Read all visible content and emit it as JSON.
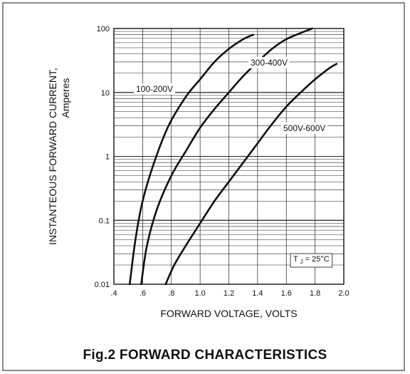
{
  "chart_data": {
    "type": "line",
    "title": "",
    "caption": "Fig.2 FORWARD CHARACTERISTICS",
    "xlabel": "FORWARD VOLTAGE, VOLTS",
    "ylabel_line1": "INSTANTEOUS FORWARD CURRENT,",
    "ylabel_line2": "Amperes",
    "x_scale": "linear",
    "y_scale": "log",
    "xlim": [
      0.4,
      2.0
    ],
    "ylim": [
      0.01,
      100
    ],
    "x_ticks": [
      ".4",
      ".6",
      ".8",
      "1.0",
      "1.2",
      "1.4",
      "1.6",
      "1.8",
      "2.0"
    ],
    "y_ticks": [
      "0.01",
      "0.1",
      "1",
      "10",
      "100"
    ],
    "grid": true,
    "condition_text": "= 25°C",
    "condition_symbol": "T",
    "condition_subscript": "J",
    "series": [
      {
        "name": "100-200V",
        "points": [
          [
            0.51,
            0.01
          ],
          [
            0.55,
            0.05
          ],
          [
            0.6,
            0.2
          ],
          [
            0.68,
            0.8
          ],
          [
            0.78,
            3.0
          ],
          [
            0.9,
            8.5
          ],
          [
            1.0,
            16
          ],
          [
            1.1,
            30
          ],
          [
            1.2,
            48
          ],
          [
            1.3,
            68
          ],
          [
            1.37,
            80
          ]
        ]
      },
      {
        "name": "300-400V",
        "points": [
          [
            0.59,
            0.01
          ],
          [
            0.63,
            0.04
          ],
          [
            0.7,
            0.15
          ],
          [
            0.8,
            0.5
          ],
          [
            0.9,
            1.2
          ],
          [
            1.0,
            2.8
          ],
          [
            1.1,
            5.5
          ],
          [
            1.2,
            10
          ],
          [
            1.3,
            18
          ],
          [
            1.4,
            30
          ],
          [
            1.5,
            48
          ],
          [
            1.6,
            68
          ],
          [
            1.7,
            85
          ],
          [
            1.78,
            100
          ]
        ]
      },
      {
        "name": "500V-600V",
        "points": [
          [
            0.76,
            0.01
          ],
          [
            0.82,
            0.02
          ],
          [
            0.9,
            0.04
          ],
          [
            1.0,
            0.09
          ],
          [
            1.1,
            0.2
          ],
          [
            1.2,
            0.4
          ],
          [
            1.3,
            0.8
          ],
          [
            1.4,
            1.6
          ],
          [
            1.5,
            3.2
          ],
          [
            1.6,
            6.0
          ],
          [
            1.7,
            10
          ],
          [
            1.8,
            16
          ],
          [
            1.9,
            24
          ],
          [
            1.95,
            28
          ]
        ]
      }
    ]
  }
}
